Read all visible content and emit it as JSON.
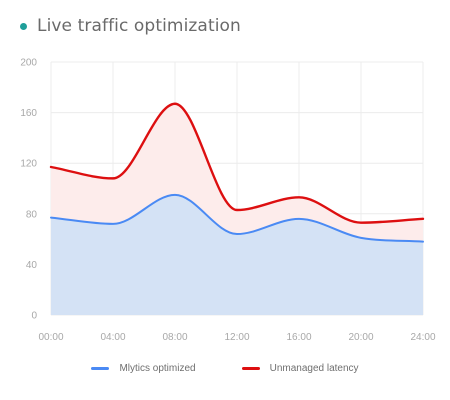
{
  "header": {
    "title": "Live traffic optimization"
  },
  "colors": {
    "status_dot": "#1f9f9a",
    "optimized": "#4a8af4",
    "optimized_fill": "#d4e2f5",
    "unmanaged": "#dd0f10",
    "unmanaged_fill": "#fdeceb",
    "grid": "#ececec"
  },
  "chart_data": {
    "type": "area",
    "x": [
      "00:00",
      "04:00",
      "08:00",
      "12:00",
      "16:00",
      "20:00",
      "24:00"
    ],
    "ylim": [
      0,
      200
    ],
    "yticks": [
      0,
      40,
      80,
      120,
      160,
      200
    ],
    "grid": true,
    "legend_position": "bottom-center",
    "series": [
      {
        "name": "Mlytics optimized",
        "color": "#4a8af4",
        "x": [
          0,
          4,
          8,
          12,
          16,
          20,
          24
        ],
        "values": [
          77,
          72,
          95,
          64,
          76,
          61,
          58
        ]
      },
      {
        "name": "Unmanaged latency",
        "color": "#dd0f10",
        "x": [
          0,
          4,
          8,
          12,
          16,
          20,
          24
        ],
        "values": [
          117,
          108,
          167,
          83,
          93,
          73,
          76
        ]
      }
    ]
  }
}
